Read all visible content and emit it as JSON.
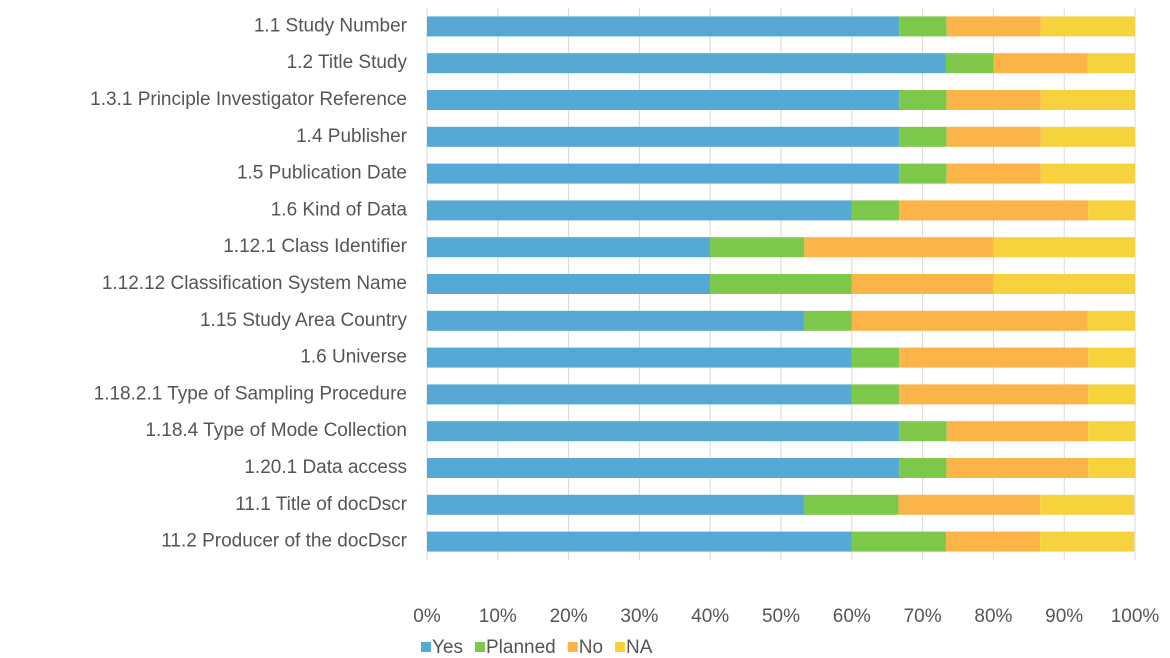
{
  "chart_data": {
    "type": "stacked_barh",
    "categories": [
      "1.1 Study Number",
      "1.2 Title Study",
      "1.3.1 Principle Investigator Reference",
      "1.4 Publisher",
      "1.5 Publication Date",
      "1.6 Kind of Data",
      "1.12.1 Class Identifier",
      "1.12.12 Classification System Name",
      "1.15 Study Area Country",
      "1.6 Universe",
      "1.18.2.1 Type of Sampling Procedure",
      "1.18.4 Type of Mode Collection",
      "1.20.1 Data access",
      "11.1 Title of docDscr",
      "11.2 Producer of the docDscr"
    ],
    "series": [
      {
        "name": "Yes",
        "color": "#56a9d4",
        "values": [
          66.7,
          73.3,
          66.7,
          66.7,
          66.7,
          60,
          40,
          40,
          53.3,
          60,
          60,
          66.7,
          66.7,
          53.3,
          60
        ]
      },
      {
        "name": "Planned",
        "color": "#7dc84a",
        "values": [
          6.7,
          6.7,
          6.7,
          6.7,
          6.7,
          6.7,
          13.3,
          20,
          6.7,
          6.7,
          6.7,
          6.7,
          6.7,
          13.3,
          13.3
        ]
      },
      {
        "name": "No",
        "color": "#fbb447",
        "values": [
          13.3,
          13.3,
          13.3,
          13.3,
          13.3,
          26.7,
          26.7,
          20,
          33.3,
          26.7,
          26.7,
          20,
          20,
          20,
          13.3
        ]
      },
      {
        "name": "NA",
        "color": "#f6d33c",
        "values": [
          13.3,
          6.7,
          13.3,
          13.3,
          13.3,
          6.7,
          20,
          20,
          6.7,
          6.7,
          6.7,
          6.7,
          6.7,
          13.3,
          13.3
        ]
      }
    ],
    "xlim": [
      0,
      100
    ],
    "xticks": [
      {
        "value": 0,
        "label": "0%"
      },
      {
        "value": 10,
        "label": "10%"
      },
      {
        "value": 20,
        "label": "20%"
      },
      {
        "value": 30,
        "label": "30%"
      },
      {
        "value": 40,
        "label": "40%"
      },
      {
        "value": 50,
        "label": "50%"
      },
      {
        "value": 60,
        "label": "60%"
      },
      {
        "value": 70,
        "label": "70%"
      },
      {
        "value": 80,
        "label": "80%"
      },
      {
        "value": 90,
        "label": "90%"
      },
      {
        "value": 100,
        "label": "100%"
      }
    ],
    "grid": true,
    "legend": "bottom"
  }
}
